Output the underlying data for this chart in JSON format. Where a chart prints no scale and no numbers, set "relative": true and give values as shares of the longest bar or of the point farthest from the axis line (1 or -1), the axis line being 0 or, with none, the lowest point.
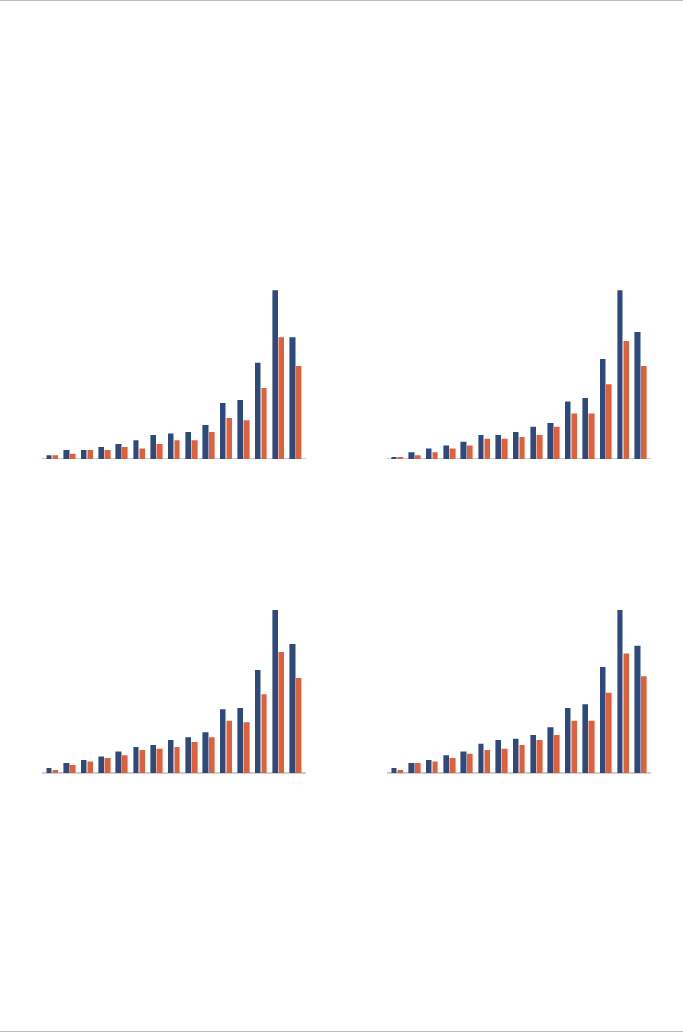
{
  "chart_data": [
    {
      "type": "bar",
      "relative": true,
      "categories": [
        null,
        null,
        null,
        null,
        null,
        null,
        null,
        null,
        null,
        null,
        null,
        null,
        null,
        null,
        null
      ],
      "series": [
        {
          "color": "#2e4a7d",
          "values": [
            0.02,
            0.05,
            0.05,
            0.07,
            0.09,
            0.11,
            0.14,
            0.15,
            0.16,
            0.2,
            0.33,
            0.35,
            0.57,
            1,
            0.72
          ]
        },
        {
          "color": "#e0603a",
          "values": [
            0.02,
            0.03,
            0.05,
            0.05,
            0.07,
            0.06,
            0.09,
            0.11,
            0.11,
            0.16,
            0.24,
            0.23,
            0.42,
            0.72,
            0.55
          ]
        }
      ]
    },
    {
      "type": "bar",
      "relative": true,
      "categories": [
        null,
        null,
        null,
        null,
        null,
        null,
        null,
        null,
        null,
        null,
        null,
        null,
        null,
        null,
        null
      ],
      "series": [
        {
          "color": "#2e4a7d",
          "values": [
            0.01,
            0.04,
            0.06,
            0.08,
            0.1,
            0.14,
            0.14,
            0.16,
            0.19,
            0.21,
            0.34,
            0.36,
            0.59,
            1,
            0.75
          ]
        },
        {
          "color": "#e0603a",
          "values": [
            0.01,
            0.02,
            0.04,
            0.06,
            0.08,
            0.12,
            0.12,
            0.13,
            0.14,
            0.19,
            0.27,
            0.27,
            0.44,
            0.7,
            0.55
          ]
        }
      ]
    },
    {
      "type": "bar",
      "relative": true,
      "categories": [
        null,
        null,
        null,
        null,
        null,
        null,
        null,
        null,
        null,
        null,
        null,
        null,
        null,
        null,
        null
      ],
      "series": [
        {
          "color": "#2e4a7d",
          "values": [
            0.03,
            0.06,
            0.08,
            0.1,
            0.13,
            0.16,
            0.17,
            0.2,
            0.22,
            0.25,
            0.39,
            0.4,
            0.63,
            1,
            0.79
          ]
        },
        {
          "color": "#e0603a",
          "values": [
            0.02,
            0.05,
            0.07,
            0.09,
            0.11,
            0.14,
            0.15,
            0.16,
            0.19,
            0.22,
            0.32,
            0.31,
            0.48,
            0.74,
            0.58
          ]
        }
      ]
    },
    {
      "type": "bar",
      "relative": true,
      "categories": [
        null,
        null,
        null,
        null,
        null,
        null,
        null,
        null,
        null,
        null,
        null,
        null,
        null,
        null,
        null
      ],
      "series": [
        {
          "color": "#2e4a7d",
          "values": [
            0.03,
            0.06,
            0.08,
            0.11,
            0.13,
            0.18,
            0.2,
            0.21,
            0.23,
            0.28,
            0.4,
            0.42,
            0.65,
            1,
            0.78
          ]
        },
        {
          "color": "#e0603a",
          "values": [
            0.02,
            0.06,
            0.07,
            0.09,
            0.12,
            0.14,
            0.15,
            0.17,
            0.2,
            0.23,
            0.32,
            0.32,
            0.49,
            0.73,
            0.59
          ]
        }
      ]
    }
  ]
}
